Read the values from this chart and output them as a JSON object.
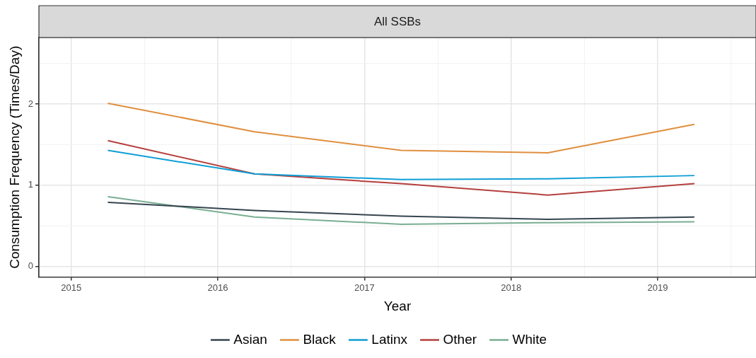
{
  "chart_data": {
    "type": "line",
    "title": "All SSBs",
    "xlabel": "Year",
    "ylabel": "Consumption Frequency (Times/Day)",
    "x": [
      2015.25,
      2016.25,
      2017.25,
      2018.25,
      2019.25
    ],
    "xlim": [
      2014.78,
      2019.67
    ],
    "xticks": [
      2015,
      {
        "value": 2015.5,
        "label": null
      },
      2016,
      {
        "value": 2016.5,
        "label": null
      },
      2017,
      {
        "value": 2017.5,
        "label": null
      },
      2018,
      {
        "value": 2018.5,
        "label": null
      },
      2019,
      {
        "value": 2019.5,
        "label": null
      }
    ],
    "ylim": [
      -0.13,
      2.82
    ],
    "yticks": [
      0,
      {
        "value": 0.5,
        "label": null
      },
      1,
      {
        "value": 1.5,
        "label": null
      },
      2,
      {
        "value": 2.5,
        "label": null
      }
    ],
    "grid": true,
    "legend": "bottom",
    "marker": "none",
    "line_style": "solid",
    "series": [
      {
        "name": "Asian",
        "color": "#36454f",
        "values": [
          0.79,
          0.69,
          0.62,
          0.58,
          0.61
        ]
      },
      {
        "name": "Black",
        "color": "#e08f3e",
        "values": [
          2.01,
          1.66,
          1.43,
          1.4,
          1.75
        ]
      },
      {
        "name": "Latinx",
        "color": "#0f9ed5",
        "values": [
          1.43,
          1.14,
          1.07,
          1.08,
          1.12
        ]
      },
      {
        "name": "Other",
        "color": "#b5403e",
        "values": [
          1.55,
          1.14,
          1.02,
          0.88,
          1.02
        ]
      },
      {
        "name": "White",
        "color": "#7aae92",
        "values": [
          0.86,
          0.61,
          0.52,
          0.54,
          0.55
        ]
      }
    ]
  }
}
